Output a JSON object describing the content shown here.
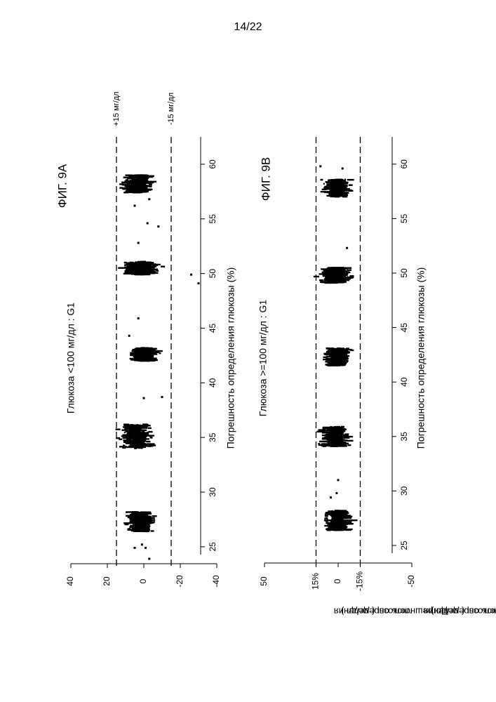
{
  "page": {
    "number": "14/22"
  },
  "chart_data": [
    {
      "type": "scatter",
      "figure_label": "ФИГ. 9А",
      "title": "Глюкоза <100 мг/дл : G1",
      "xlabel": "Погрешность определения глюкозы (%)",
      "ylabel_line1": "Погрешность определения",
      "ylabel_line2": "глюкозы ( мг/дл )",
      "xlim": [
        23,
        62.5
      ],
      "ylim": [
        -40,
        40
      ],
      "xticks": [
        25,
        30,
        35,
        40,
        45,
        50,
        55,
        60
      ],
      "xtick_labels": [
        "25",
        "30",
        "35",
        "40",
        "45",
        "50",
        "55",
        "60"
      ],
      "yticks": [
        40,
        20,
        0,
        -20,
        -40
      ],
      "ytick_labels": [
        "40",
        "20",
        "0",
        "-20",
        "-40"
      ],
      "reference_lines": [
        {
          "value": 15,
          "label": "+15 мг/дл"
        },
        {
          "value": -15,
          "label": "-15 мг/дл"
        }
      ],
      "clusters": [
        {
          "x_center": 27.3,
          "x_spread": 0.9,
          "y_center": 2,
          "y_sd": 4.5,
          "n": 260
        },
        {
          "x_center": 35.1,
          "x_spread": 1.1,
          "y_center": 4,
          "y_sd": 5,
          "n": 230
        },
        {
          "x_center": 42.6,
          "x_spread": 0.6,
          "y_center": 0,
          "y_sd": 4,
          "n": 270
        },
        {
          "x_center": 50.5,
          "x_spread": 0.6,
          "y_center": 2,
          "y_sd": 5.5,
          "n": 240
        },
        {
          "x_center": 58.2,
          "x_spread": 0.8,
          "y_center": 4,
          "y_sd": 5,
          "n": 260
        }
      ],
      "sparse_points": [
        [
          24.9,
          5
        ],
        [
          24.9,
          -1
        ],
        [
          38.6,
          0
        ],
        [
          38.7,
          -10
        ],
        [
          44.3,
          8
        ],
        [
          45.9,
          3
        ],
        [
          49.1,
          -30
        ],
        [
          49.9,
          -26
        ],
        [
          52.8,
          3
        ],
        [
          54.3,
          -8
        ],
        [
          54.6,
          -2
        ],
        [
          56.2,
          5
        ],
        [
          56.8,
          -3
        ],
        [
          23.9,
          -3
        ],
        [
          25.2,
          1
        ]
      ]
    },
    {
      "type": "scatter",
      "figure_label": "ФИГ. 9В",
      "title": "Глюкоза >=100 мг/дл : G1",
      "xlabel": "Погрешность определения глюкозы (%)",
      "ylabel_line1": "Погрешность определения",
      "ylabel_line2": "глюкозы ( мг/дл )",
      "xlim": [
        23,
        62.5
      ],
      "ylim": [
        -50,
        50
      ],
      "xticks": [
        25,
        30,
        35,
        40,
        45,
        50,
        55,
        60
      ],
      "xtick_labels": [
        "25",
        "30",
        "35",
        "40",
        "45",
        "50",
        "55",
        "60"
      ],
      "yticks": [
        50,
        15,
        0,
        -15,
        -50
      ],
      "ytick_labels": [
        "50",
        "15%",
        "0",
        "-15%",
        "-50"
      ],
      "reference_lines": [
        {
          "value": 15,
          "label": ""
        },
        {
          "value": -15,
          "label": ""
        }
      ],
      "clusters": [
        {
          "x_center": 27.3,
          "x_spread": 0.9,
          "y_center": 0,
          "y_sd": 5,
          "n": 290
        },
        {
          "x_center": 35.0,
          "x_spread": 0.9,
          "y_center": 2,
          "y_sd": 5.5,
          "n": 270
        },
        {
          "x_center": 42.3,
          "x_spread": 0.8,
          "y_center": 1,
          "y_sd": 5,
          "n": 300
        },
        {
          "x_center": 49.8,
          "x_spread": 0.7,
          "y_center": 2,
          "y_sd": 6,
          "n": 280
        },
        {
          "x_center": 57.8,
          "x_spread": 0.8,
          "y_center": 1,
          "y_sd": 5,
          "n": 250
        }
      ],
      "sparse_points": [
        [
          29.4,
          5
        ],
        [
          29.8,
          1
        ],
        [
          31.0,
          0
        ],
        [
          52.3,
          -6
        ],
        [
          59.6,
          -3
        ],
        [
          59.8,
          12
        ]
      ]
    }
  ]
}
